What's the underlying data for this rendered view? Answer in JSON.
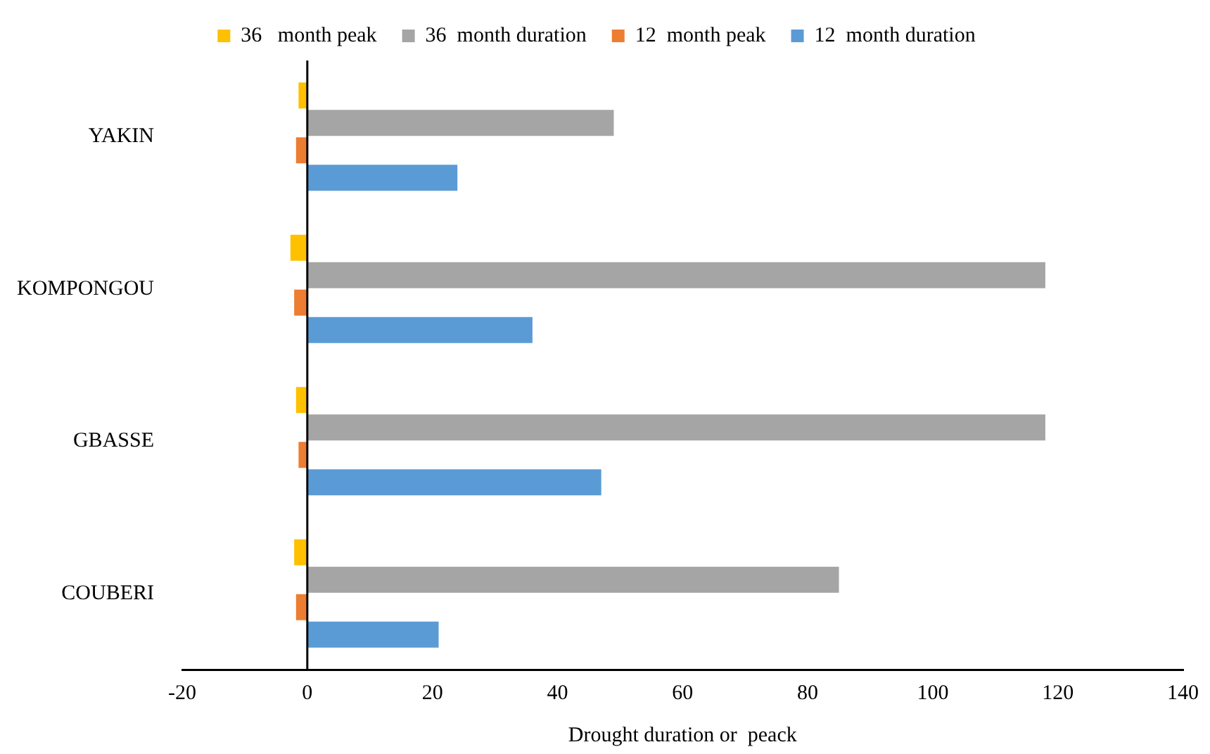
{
  "chart_data": {
    "type": "bar",
    "orientation": "horizontal",
    "xlabel": "Drought duration or  peack",
    "categories": [
      "YAKIN",
      "KOMPONGOU",
      "GBASSE",
      "COUBERI"
    ],
    "series": [
      {
        "name": "36   month peak",
        "color": "#ffc000",
        "values": [
          -1.4,
          -2.7,
          -1.8,
          -2.1
        ]
      },
      {
        "name": "36  month duration",
        "color": "#a5a5a5",
        "values": [
          49,
          118,
          118,
          85
        ]
      },
      {
        "name": "12  month peak",
        "color": "#ed7d31",
        "values": [
          -1.8,
          -2.1,
          -1.4,
          -1.8
        ]
      },
      {
        "name": "12  month duration",
        "color": "#5b9bd5",
        "values": [
          24,
          36,
          47,
          21
        ]
      }
    ],
    "xlim": [
      -20,
      140
    ],
    "xticks": [
      -20,
      0,
      20,
      40,
      60,
      80,
      100,
      120,
      140
    ],
    "legend": "top",
    "grid": false,
    "ref_lines": [
      {
        "axis": "x",
        "value": 0,
        "color": "#000000"
      }
    ]
  }
}
